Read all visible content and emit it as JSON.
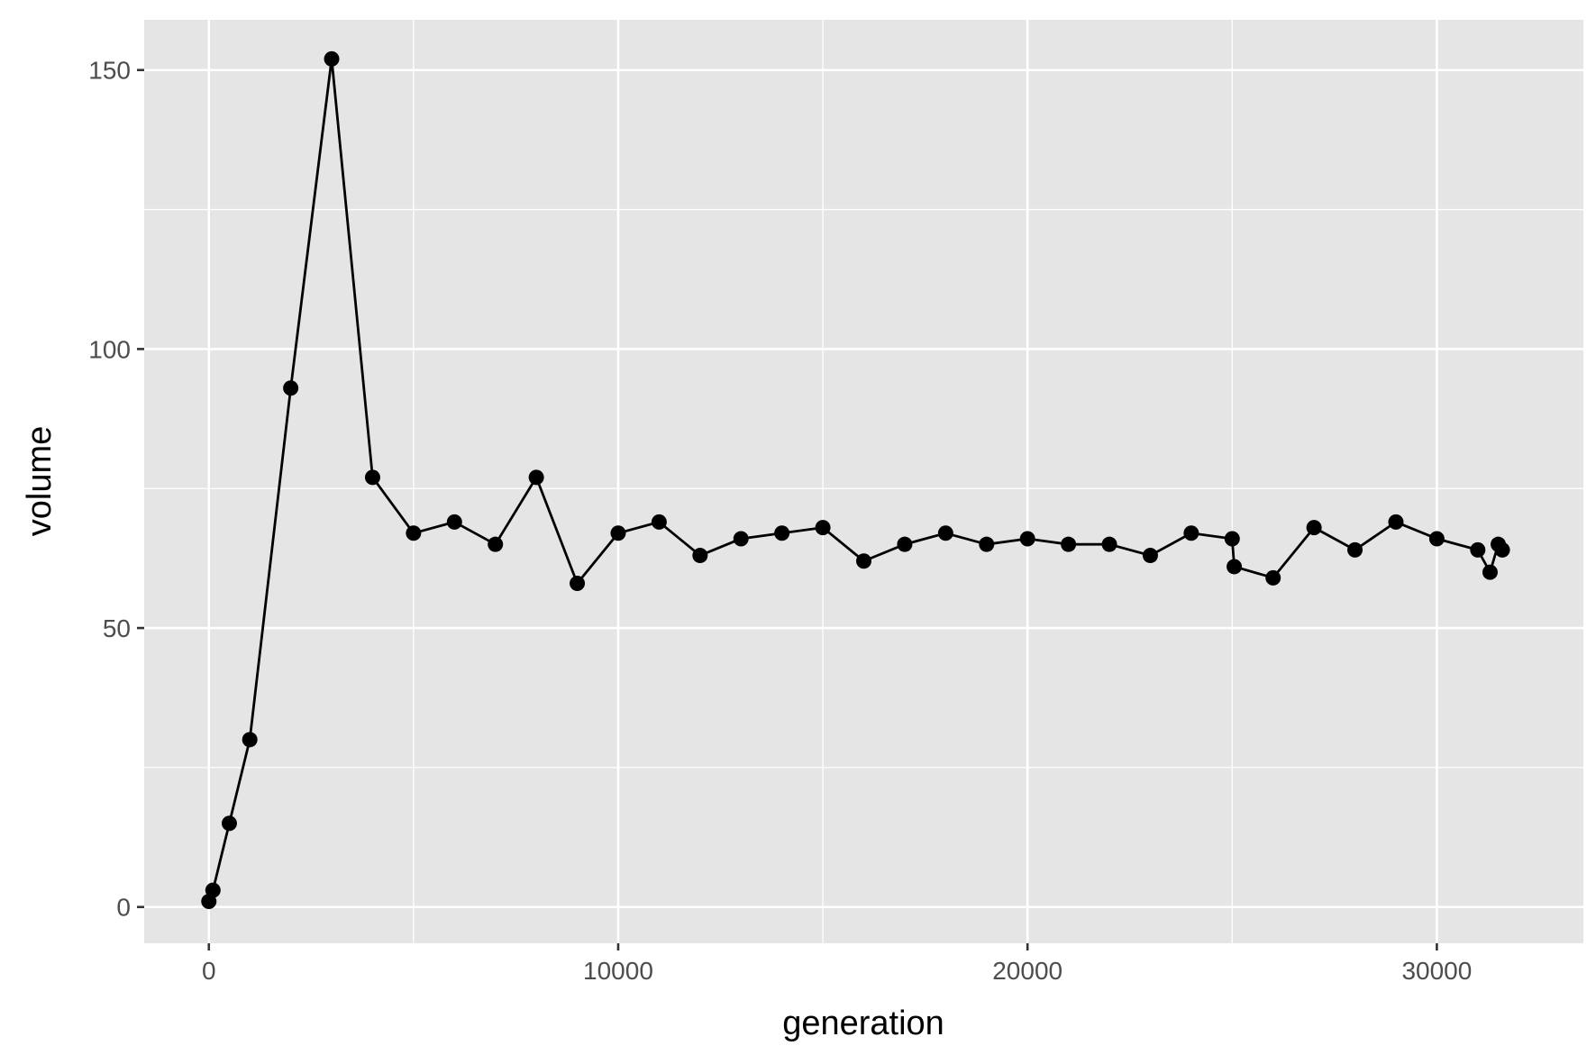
{
  "chart_data": {
    "type": "line",
    "markers": true,
    "title": "",
    "xlabel": "generation",
    "ylabel": "volume",
    "xlim": [
      -1580,
      33580
    ],
    "ylim": [
      -6.5,
      159
    ],
    "x_major_ticks": [
      0,
      10000,
      20000,
      30000
    ],
    "x_minor_ticks": [
      5000,
      15000,
      25000
    ],
    "y_major_ticks": [
      0,
      50,
      100,
      150
    ],
    "y_minor_ticks": [
      25,
      75,
      125
    ],
    "x_tick_labels": [
      "0",
      "10000",
      "20000",
      "30000"
    ],
    "y_tick_labels": [
      "0",
      "50",
      "100",
      "150"
    ],
    "grid": true,
    "legend": "none",
    "colors": {
      "panel": "#e5e5e5",
      "grid": "#ffffff",
      "line": "#000000",
      "point": "#000000",
      "tick_label": "#4d4d4d"
    },
    "series": [
      {
        "x": [
          0,
          100,
          500,
          1000,
          2000,
          3000,
          4000,
          5000,
          6000,
          7000,
          8000,
          9000,
          10000,
          11000,
          12000,
          13000,
          14000,
          15000,
          16000,
          17000,
          18000,
          19000,
          20000,
          21000,
          22000,
          23000,
          24000,
          25000,
          25050,
          26000,
          27000,
          28000,
          29000,
          30000,
          31000,
          31300,
          31500,
          31600
        ],
        "y": [
          1,
          3,
          15,
          30,
          93,
          152,
          77,
          67,
          69,
          65,
          77,
          58,
          67,
          69,
          63,
          66,
          67,
          68,
          62,
          65,
          67,
          65,
          66,
          65,
          65,
          63,
          67,
          66,
          61,
          59,
          68,
          64,
          69,
          66,
          64,
          60,
          65,
          64
        ]
      }
    ]
  }
}
